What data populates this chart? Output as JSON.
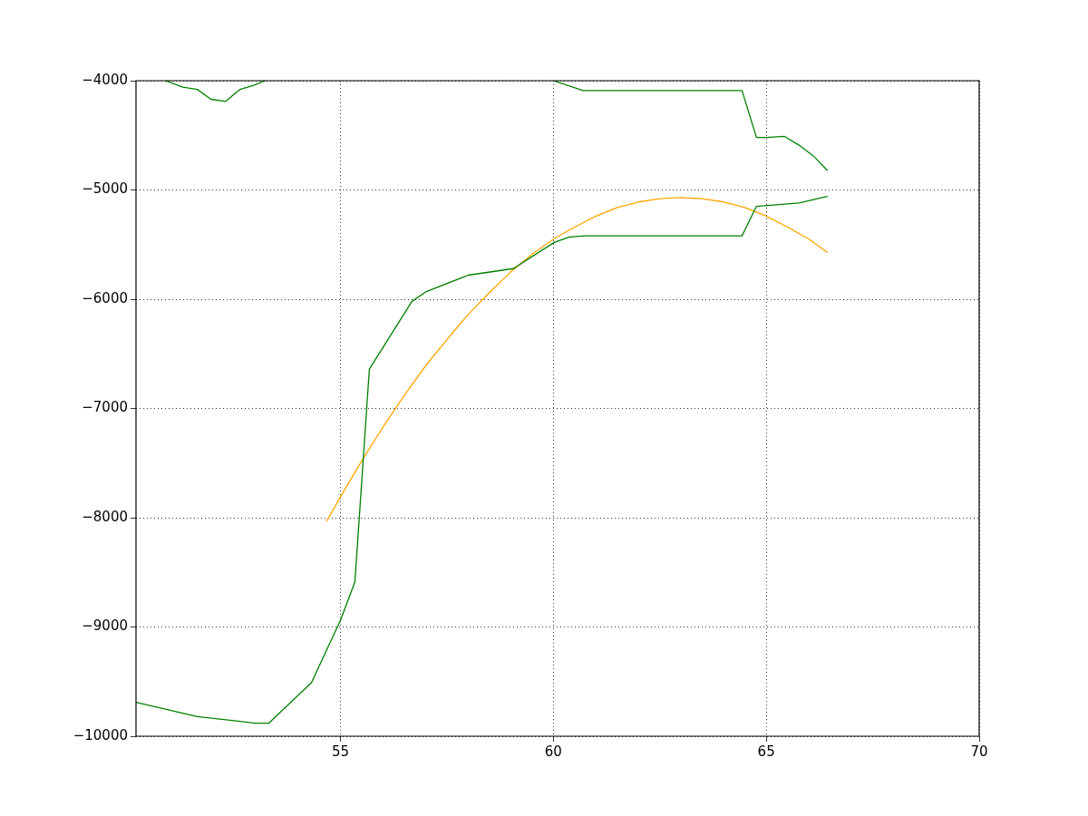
{
  "chart_data": {
    "type": "line",
    "xlim": [
      50.2,
      70
    ],
    "xticks": [
      55,
      60,
      65,
      70
    ],
    "ylim": [
      -10000,
      -4000
    ],
    "yticks": [
      {
        "value": -10000,
        "label": "−10000"
      },
      {
        "value": -9000,
        "label": "−9000"
      },
      {
        "value": -8000,
        "label": "−8000"
      },
      {
        "value": -7000,
        "label": "−7000"
      },
      {
        "value": -6000,
        "label": "−6000"
      },
      {
        "value": -5000,
        "label": "−5000"
      },
      {
        "value": -4000,
        "label": "−4000"
      }
    ],
    "grid": true,
    "legend": false,
    "marker": "none",
    "line_style": "solid",
    "series": [
      {
        "color": "#008000",
        "x": [
          50.89,
          51.3,
          51.64,
          51.96,
          52.3,
          52.64,
          52.98,
          53.23,
          null,
          60.0,
          60.7,
          64.43,
          64.77,
          65.0,
          65.43,
          65.77,
          66.11,
          66.43
        ],
        "values": [
          -4000,
          -4060,
          -4080,
          -4170,
          -4190,
          -4080,
          -4040,
          -4000,
          null,
          -4000,
          -4090,
          -4090,
          -4520,
          -4520,
          -4510,
          -4590,
          -4690,
          -4820
        ]
      },
      {
        "color": "#008000",
        "x": [
          50.2,
          51.64,
          53.0,
          53.32,
          54.32,
          55.0,
          55.34,
          55.68,
          56.68,
          57.02,
          58.0,
          59.06,
          60.02,
          60.38,
          60.74,
          64.43,
          64.77,
          65.43,
          65.77,
          66.43
        ],
        "values": [
          -9690,
          -9820,
          -9880,
          -9880,
          -9510,
          -8940,
          -8590,
          -6640,
          -6020,
          -5930,
          -5780,
          -5720,
          -5480,
          -5430,
          -5420,
          -5420,
          -5150,
          -5130,
          -5120,
          -5060
        ]
      },
      {
        "color": "#ffa500",
        "x": [
          54.68,
          55,
          55.5,
          56,
          56.5,
          57,
          57.5,
          58,
          58.5,
          59,
          59.5,
          60,
          60.5,
          61,
          61.5,
          62,
          62.5,
          63,
          63.5,
          64,
          64.5,
          65,
          65.5,
          66,
          66.43
        ],
        "values": [
          -8030,
          -7810,
          -7480,
          -7170,
          -6880,
          -6610,
          -6370,
          -6140,
          -5940,
          -5750,
          -5590,
          -5450,
          -5340,
          -5240,
          -5160,
          -5110,
          -5080,
          -5070,
          -5080,
          -5110,
          -5160,
          -5240,
          -5340,
          -5450,
          -5570
        ]
      }
    ]
  }
}
